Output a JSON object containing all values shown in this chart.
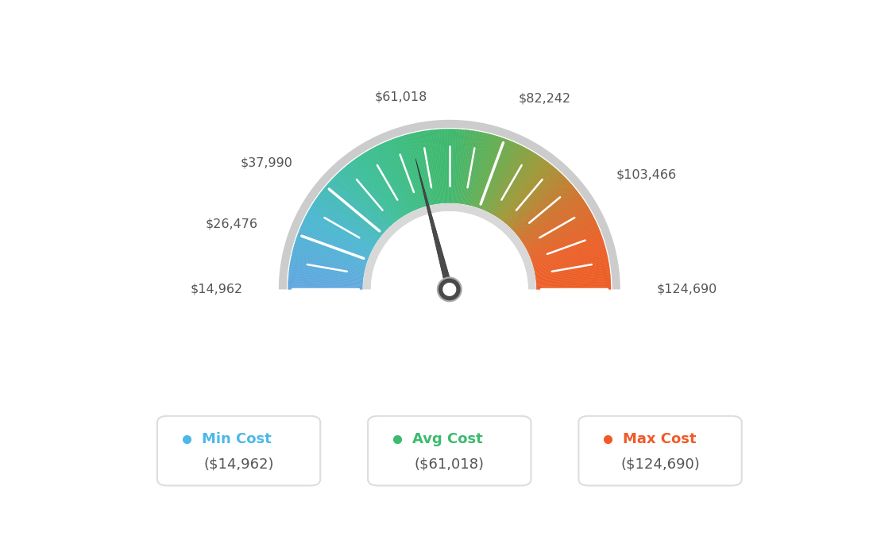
{
  "min_val": 14962,
  "max_val": 124690,
  "avg_val": 61018,
  "label_values": [
    14962,
    26476,
    37990,
    61018,
    82242,
    103466,
    124690
  ],
  "label_texts": [
    "$14,962",
    "$26,476",
    "$37,990",
    "$61,018",
    "$82,242",
    "$103,466",
    "$124,690"
  ],
  "legend_labels": [
    "Min Cost",
    "Avg Cost",
    "Max Cost"
  ],
  "legend_values": [
    "($14,962)",
    "($61,018)",
    "($124,690)"
  ],
  "legend_colors": [
    "#4db8e8",
    "#3dba6e",
    "#f05a28"
  ],
  "bg_color": "#ffffff",
  "gradient_colors": [
    [
      0.0,
      [
        0.38,
        0.65,
        0.88
      ]
    ],
    [
      0.15,
      [
        0.3,
        0.72,
        0.82
      ]
    ],
    [
      0.3,
      [
        0.24,
        0.75,
        0.6
      ]
    ],
    [
      0.45,
      [
        0.24,
        0.73,
        0.45
      ]
    ],
    [
      0.5,
      [
        0.24,
        0.72,
        0.43
      ]
    ],
    [
      0.6,
      [
        0.4,
        0.68,
        0.32
      ]
    ],
    [
      0.7,
      [
        0.62,
        0.6,
        0.22
      ]
    ],
    [
      0.8,
      [
        0.82,
        0.45,
        0.18
      ]
    ],
    [
      0.9,
      [
        0.92,
        0.38,
        0.16
      ]
    ],
    [
      1.0,
      [
        0.93,
        0.36,
        0.14
      ]
    ]
  ]
}
